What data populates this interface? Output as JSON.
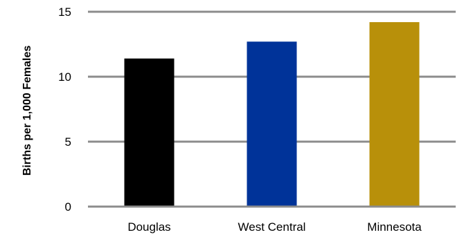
{
  "chart_data": {
    "type": "bar",
    "title": "",
    "xlabel": "",
    "ylabel": "Births per 1,000 Females",
    "categories": [
      "Douglas",
      "West Central",
      "Minnesota"
    ],
    "values": [
      11.4,
      12.7,
      14.2
    ],
    "bar_colors": [
      "#000000",
      "#003399",
      "#b8900a"
    ],
    "ylim": [
      0,
      15
    ],
    "yticks": [
      0,
      5,
      10,
      15
    ],
    "ytick_labels": [
      "0",
      "5",
      "10",
      "15"
    ],
    "grid": true,
    "grid_color": "#8c8c8c",
    "legend": "none"
  }
}
